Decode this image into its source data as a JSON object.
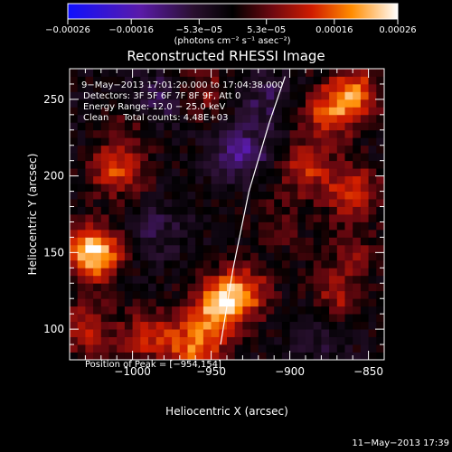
{
  "chart_data": {
    "type": "heatmap",
    "title": "Reconstructed RHESSI Image",
    "xlabel": "Heliocentric X (arcsec)",
    "ylabel": "Heliocentric Y (arcsec)",
    "xlim": [
      -1040,
      -840
    ],
    "ylim": [
      80,
      270
    ],
    "x_ticks": [
      -1000,
      -950,
      -900,
      -850
    ],
    "x_tick_labels": [
      "−1000",
      "−950",
      "−900",
      "−850"
    ],
    "y_ticks": [
      100,
      150,
      200,
      250
    ],
    "y_tick_labels": [
      "100",
      "150",
      "200",
      "250"
    ],
    "colorbar": {
      "min": -0.00026,
      "max": 0.00026,
      "ticks": [
        -0.00026,
        -0.00016,
        -5.3e-05,
        5.3e-05,
        0.00016,
        0.00026
      ],
      "tick_labels": [
        "−0.00026",
        "−0.00016",
        "−5.3e−05",
        "5.3e−05",
        "0.00016",
        "0.00026"
      ],
      "unit_label": "(photons cm⁻² s⁻¹ asec⁻²)"
    },
    "annotations": [
      "9−May−2013 17:01:20.000 to 17:04:38.000",
      "Detectors: 3F 5F 6F 7F 8F 9F, Att 0",
      "Energy Range: 12.0 − 25.0 keV",
      "Clean     Total counts: 4.48E+03"
    ],
    "peak_label": "Position of Peak = [−954,154]",
    "limb_points": [
      [
        -944,
        90
      ],
      [
        -936,
        140
      ],
      [
        -926,
        190
      ],
      [
        -913,
        235
      ],
      [
        -903,
        265
      ]
    ],
    "bright_sources": [
      {
        "x": -1025,
        "y": 150,
        "value": 0.00026
      },
      {
        "x": -1010,
        "y": 205,
        "value": 0.00015
      },
      {
        "x": -945,
        "y": 115,
        "value": 0.0002
      },
      {
        "x": -930,
        "y": 125,
        "value": 0.00015
      },
      {
        "x": -960,
        "y": 90,
        "value": 0.00018
      },
      {
        "x": -990,
        "y": 95,
        "value": 0.00012
      },
      {
        "x": -875,
        "y": 240,
        "value": 0.00014
      },
      {
        "x": -860,
        "y": 255,
        "value": 0.00016
      },
      {
        "x": -890,
        "y": 205,
        "value": 0.00012
      },
      {
        "x": -860,
        "y": 190,
        "value": 0.00014
      },
      {
        "x": -870,
        "y": 120,
        "value": 0.0001
      },
      {
        "x": -860,
        "y": 150,
        "value": 7e-05
      },
      {
        "x": -1030,
        "y": 100,
        "value": 0.00012
      },
      {
        "x": -955,
        "y": 255,
        "value": 8e-05
      },
      {
        "x": -1000,
        "y": 240,
        "value": 6e-05
      },
      {
        "x": -905,
        "y": 170,
        "value": 5e-05
      }
    ],
    "dark_sources": [
      {
        "x": -985,
        "y": 250,
        "value": -9e-05
      },
      {
        "x": -930,
        "y": 215,
        "value": -0.00012
      },
      {
        "x": -915,
        "y": 250,
        "value": -7e-05
      },
      {
        "x": -985,
        "y": 165,
        "value": -6e-05
      },
      {
        "x": -880,
        "y": 100,
        "value": -6e-05
      }
    ]
  },
  "footer_date": "11−May−2013 17:39"
}
